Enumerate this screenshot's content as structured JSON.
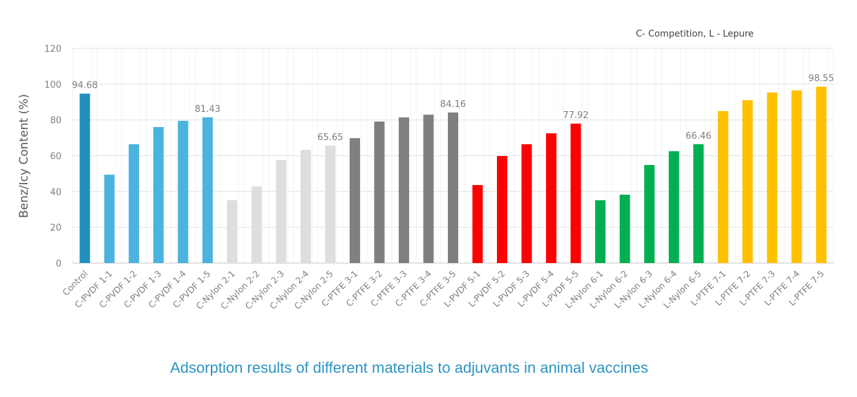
{
  "chart_data": {
    "type": "bar",
    "title": "",
    "note": "C- Competition, L - Lepure",
    "caption": "Adsorption results of different materials to adjuvants in animal vaccines",
    "xlabel": "",
    "ylabel": "Benz/Icy Content (%)",
    "ylim": [
      0,
      120
    ],
    "yticks": [
      0,
      20,
      40,
      60,
      80,
      100,
      120
    ],
    "grid": true,
    "legend": "none",
    "categories": [
      "Control",
      "C-PVDF 1-1",
      "C-PVDF 1-2",
      "C-PVDF 1-3",
      "C-PVDF 1-4",
      "C-PVDF 1-5",
      "C-Nylon 2-1",
      "C-Nylon 2-2",
      "C-Nylon 2-3",
      "C-Nylon 2-4",
      "C-Nylon 2-5",
      "C-PTFE 3-1",
      "C-PTFE 3-2",
      "C-PTFE 3-3",
      "C-PTFE 3-4",
      "C-PTFE 3-5",
      "L-PVDF 5-1",
      "L-PVDF 5-2",
      "L-PVDF 5-3",
      "L-PVDF 5-4",
      "L-PVDF 5-5",
      "L-Nylon 6-1",
      "L-Nylon 6-2",
      "L-Nylon 6-3",
      "L-Nylon 6-4",
      "L-Nylon 6-5",
      "L-PTFE 7-1",
      "L-PTFE 7-2",
      "L-PTFE 7-3",
      "L-PTFE 7-4",
      "L-PTFE 7-5"
    ],
    "values": [
      94.68,
      49.4,
      66.4,
      76.0,
      79.5,
      81.43,
      35.1,
      42.8,
      57.5,
      63.3,
      65.65,
      69.8,
      79.1,
      81.4,
      82.9,
      84.16,
      43.6,
      59.8,
      66.4,
      72.5,
      77.92,
      35.1,
      38.2,
      54.8,
      62.5,
      66.46,
      84.9,
      91.0,
      95.3,
      96.5,
      98.55
    ],
    "colors": [
      "#2290bf",
      "#4bb3df",
      "#4bb3df",
      "#4bb3df",
      "#4bb3df",
      "#4bb3df",
      "#dedede",
      "#dedede",
      "#dedede",
      "#dedede",
      "#dedede",
      "#7f7f7f",
      "#7f7f7f",
      "#7f7f7f",
      "#7f7f7f",
      "#7f7f7f",
      "#ff0000",
      "#ff0000",
      "#ff0000",
      "#ff0000",
      "#ff0000",
      "#00b050",
      "#00b050",
      "#00b050",
      "#00b050",
      "#00b050",
      "#ffc000",
      "#ffc000",
      "#ffc000",
      "#ffc000",
      "#ffc000"
    ],
    "data_labels": [
      {
        "index": 0,
        "text": "94.68"
      },
      {
        "index": 5,
        "text": "81.43"
      },
      {
        "index": 10,
        "text": "65.65"
      },
      {
        "index": 15,
        "text": "84.16"
      },
      {
        "index": 20,
        "text": "77.92"
      },
      {
        "index": 25,
        "text": "66.46"
      },
      {
        "index": 30,
        "text": "98.55"
      }
    ]
  }
}
